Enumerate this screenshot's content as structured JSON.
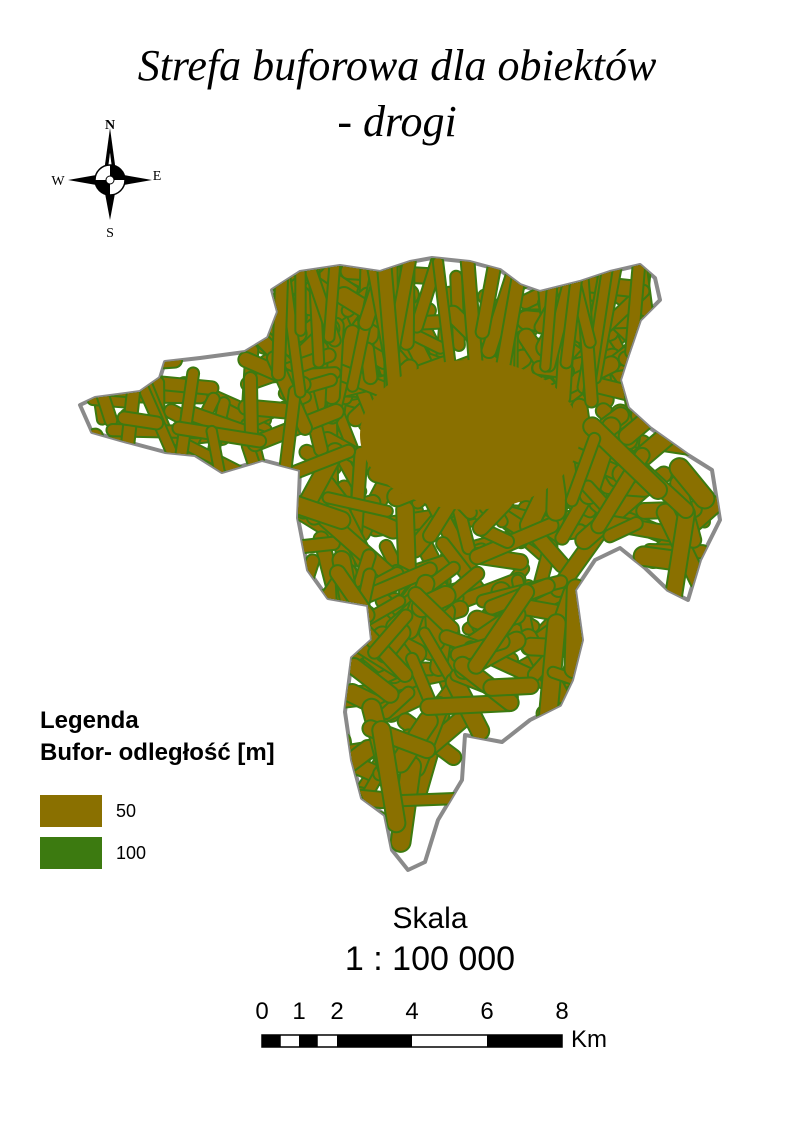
{
  "title": {
    "line1": "Strefa buforowa dla obiektów",
    "line2": "- drogi"
  },
  "north_arrow": {
    "n": "N",
    "s": "S",
    "e": "E",
    "w": "W",
    "icon": "compass-rose-icon"
  },
  "map": {
    "fill_color": "#8a7000",
    "outer_buffer_color": "#3c7a10",
    "boundary_color": "#8a8a8a"
  },
  "legend": {
    "title": "Legenda",
    "subtitle": "Bufor- odległość [m]",
    "items": [
      {
        "label": "50",
        "color": "#8a7000"
      },
      {
        "label": "100",
        "color": "#3c7a10"
      }
    ]
  },
  "scale": {
    "title": "Skala",
    "ratio": "1 : 100 000",
    "ticks": [
      "0",
      "1",
      "2",
      "4",
      "6",
      "8"
    ],
    "unit": "Km"
  }
}
